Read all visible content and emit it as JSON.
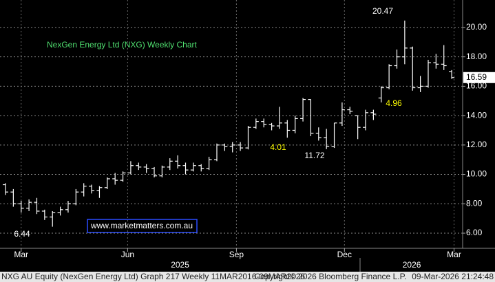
{
  "chart_data": {
    "type": "ohlc",
    "title": "NexGen Energy Ltd (NXG) Weekly Chart",
    "watermark": "www.marketmatters.com.au",
    "footer_left": "NXG AU Equity (NexGen Energy Ltd) Graph 217 Weekly 11MAR2016-09MAR2026",
    "footer_center": "Copyright© 2026 Bloomberg Finance L.P.",
    "footer_right": "09-Mar-2026 21:24:48",
    "color": "#ffffff",
    "grid": true,
    "categories": [
      null,
      null,
      null,
      null,
      null,
      null,
      null,
      null,
      null,
      null,
      null,
      null,
      null,
      null,
      null,
      null,
      null,
      null,
      null,
      null,
      null,
      null,
      null,
      null,
      null,
      null,
      null,
      null,
      null,
      null,
      null,
      null,
      null,
      null,
      null,
      null,
      null,
      null,
      null,
      null,
      null,
      null,
      null,
      null,
      null,
      null,
      null,
      null,
      null,
      null,
      null,
      null,
      null,
      null,
      null,
      null,
      null,
      null
    ],
    "open": [
      9.3,
      8.8,
      8.0,
      7.7,
      8.1,
      7.5,
      7.1,
      7.4,
      7.6,
      8.0,
      8.8,
      9.2,
      8.9,
      9.1,
      9.7,
      9.6,
      10.1,
      10.6,
      10.5,
      10.4,
      9.9,
      10.5,
      10.9,
      10.6,
      10.3,
      10.6,
      10.4,
      11.0,
      12.0,
      11.9,
      12.0,
      11.8,
      13.2,
      13.6,
      13.4,
      13.3,
      13.5,
      13.0,
      13.8,
      15.1,
      12.8,
      12.5,
      11.9,
      13.5,
      14.4,
      14.0,
      13.2,
      14.2,
      15.2,
      15.9,
      17.4,
      18.0,
      18.6,
      15.9,
      16.0,
      17.6,
      17.5,
      17.0
    ],
    "high": [
      9.4,
      9.0,
      8.2,
      8.3,
      8.4,
      7.6,
      7.5,
      7.8,
      8.2,
      9.0,
      9.4,
      9.3,
      9.2,
      9.8,
      10.1,
      10.2,
      10.9,
      10.8,
      10.7,
      10.5,
      10.6,
      11.1,
      11.3,
      10.8,
      10.8,
      10.7,
      11.2,
      12.1,
      12.1,
      12.2,
      12.2,
      13.3,
      13.8,
      13.8,
      13.5,
      14.6,
      13.7,
      14.0,
      15.2,
      15.1,
      13.2,
      13.1,
      13.5,
      14.9,
      14.6,
      14.0,
      14.4,
      14.4,
      16.0,
      17.5,
      18.5,
      20.47,
      18.7,
      16.7,
      17.8,
      18.2,
      18.8,
      17.1
    ],
    "low": [
      8.6,
      7.8,
      7.4,
      7.5,
      7.3,
      6.9,
      6.44,
      7.2,
      7.4,
      7.9,
      8.5,
      8.7,
      8.4,
      9.0,
      9.3,
      9.5,
      10.0,
      10.3,
      10.1,
      9.8,
      9.8,
      10.3,
      10.4,
      10.0,
      10.2,
      10.2,
      10.3,
      10.9,
      11.6,
      11.5,
      11.6,
      11.7,
      13.1,
      13.2,
      13.0,
      13.1,
      12.5,
      12.8,
      13.6,
      12.6,
      12.3,
      11.72,
      11.8,
      13.3,
      14.1,
      12.4,
      13.0,
      13.7,
      14.9,
      15.8,
      17.2,
      17.5,
      15.7,
      15.6,
      15.9,
      17.2,
      17.1,
      16.5
    ],
    "close": [
      8.8,
      8.0,
      7.7,
      8.1,
      7.5,
      7.1,
      7.4,
      7.6,
      8.0,
      8.8,
      9.2,
      8.9,
      9.1,
      9.7,
      9.6,
      10.1,
      10.6,
      10.5,
      10.4,
      9.9,
      10.5,
      10.9,
      10.6,
      10.3,
      10.6,
      10.4,
      11.0,
      12.0,
      11.9,
      12.0,
      11.8,
      13.2,
      13.6,
      13.4,
      13.3,
      13.5,
      13.0,
      13.8,
      15.1,
      12.8,
      12.5,
      11.9,
      13.5,
      14.4,
      14.3,
      13.2,
      14.2,
      14.1,
      15.9,
      17.4,
      18.0,
      18.6,
      15.9,
      16.0,
      17.6,
      17.5,
      17.4,
      16.59
    ],
    "ylim": [
      4.97,
      21.87
    ],
    "yticks": [
      {
        "value": 6,
        "label": "6.00"
      },
      {
        "value": 8,
        "label": "8.00"
      },
      {
        "value": 10,
        "label": "10.00"
      },
      {
        "value": 12,
        "label": "12.00"
      },
      {
        "value": 14,
        "label": "14.00"
      },
      {
        "value": 16,
        "label": "16.00"
      },
      {
        "value": 18,
        "label": "18.00"
      },
      {
        "value": 20,
        "label": "20.00"
      }
    ],
    "xticks": [
      {
        "value": 2,
        "label": "Mar"
      },
      {
        "value": 15.6,
        "label": "Jun"
      },
      {
        "value": 29.5,
        "label": "Sep"
      },
      {
        "value": 43.3,
        "label": "Dec"
      },
      {
        "value": 57.3,
        "label": "Mar"
      }
    ],
    "year_labels": [
      {
        "value": 22.3,
        "label": "2025"
      },
      {
        "value": 51.9,
        "label": "2026"
      }
    ],
    "annotations": [
      {
        "text": "20.47",
        "color": "#ffffff"
      },
      {
        "text": "4.96",
        "color": "#ffff00"
      },
      {
        "text": "4.01",
        "color": "#ffff00"
      },
      {
        "text": "11.72",
        "color": "#ffffff"
      },
      {
        "text": "6.44",
        "color": "#ffffff"
      }
    ]
  }
}
